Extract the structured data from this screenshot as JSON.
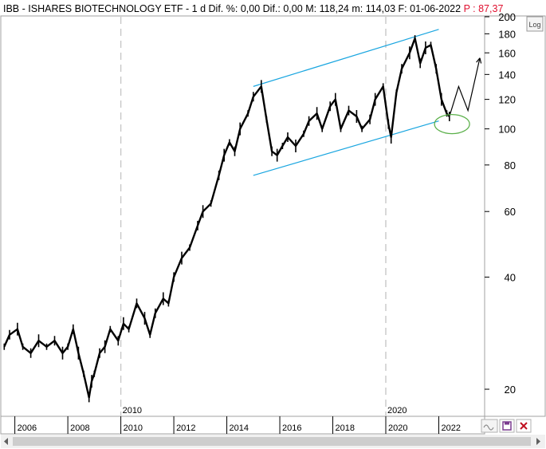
{
  "header": {
    "symbol": "IBB",
    "name": "ISHARES BIOTECHNOLOGY ETF",
    "period": "1 d",
    "diff_pct_label": "Dif. %:",
    "diff_pct": "0,00",
    "diff_label": "Dif.:",
    "diff": "0,00",
    "max_label": "M:",
    "max": "118,24",
    "min_label": "m:",
    "min": "114,03",
    "date_label": "F:",
    "date": "01-06-2022",
    "price_label": "P :",
    "price": "87,37"
  },
  "toolbar": {
    "log_label": "Log"
  },
  "colors": {
    "price": "#000000",
    "channel": "#1aa6e0",
    "ellipse": "#5bb04a",
    "grid": "#c8c8c8",
    "price_text": "#e0102f"
  },
  "icons": [
    "wave-icon",
    "save-icon",
    "close-icon",
    "scroll-left-icon",
    "scroll-right-icon"
  ],
  "chart_data": {
    "type": "line",
    "y_scale": "log",
    "ylim": [
      17,
      200
    ],
    "y_ticks": [
      20,
      40,
      60,
      80,
      100,
      120,
      140,
      160,
      180,
      200
    ],
    "x_ticks": [
      "2006",
      "2008",
      "2010",
      "2012",
      "2014",
      "2016",
      "2018",
      "2020",
      "2022"
    ],
    "x_ticks_years": [
      2006,
      2008,
      2010,
      2012,
      2014,
      2016,
      2018,
      2020,
      2022
    ],
    "x_range": [
      2005.5,
      2023.7
    ],
    "vertical_markers": [
      {
        "x": 2010,
        "label": "2010"
      },
      {
        "x": 2020,
        "label": "2020"
      }
    ],
    "series": [
      {
        "x": [
          2005.6,
          2005.8,
          2006.1,
          2006.3,
          2006.6,
          2006.9,
          2007.2,
          2007.5,
          2007.8,
          2008.0,
          2008.2,
          2008.4,
          2008.6,
          2008.8,
          2008.9,
          2009.0,
          2009.2,
          2009.4,
          2009.6,
          2009.9,
          2010.1,
          2010.3,
          2010.6,
          2010.9,
          2011.1,
          2011.3,
          2011.6,
          2011.8,
          2012.0,
          2012.3,
          2012.6,
          2012.9,
          2013.1,
          2013.4,
          2013.7,
          2013.9,
          2014.1,
          2014.3,
          2014.5,
          2014.8,
          2015.0,
          2015.3,
          2015.5,
          2015.7,
          2015.9,
          2016.1,
          2016.3,
          2016.6,
          2016.9,
          2017.1,
          2017.4,
          2017.6,
          2017.9,
          2018.1,
          2018.3,
          2018.6,
          2018.9,
          2019.1,
          2019.4,
          2019.6,
          2019.9,
          2020.1,
          2020.2,
          2020.4,
          2020.6,
          2020.9,
          2021.1,
          2021.3,
          2021.5,
          2021.7,
          2021.9,
          2022.1,
          2022.3,
          2022.4
        ],
        "values": [
          26,
          28,
          29,
          26,
          25,
          27,
          26,
          27,
          25,
          26,
          29,
          25,
          22,
          19,
          21,
          22,
          25,
          26,
          29,
          27,
          30,
          29,
          34,
          31,
          28,
          32,
          35,
          34,
          40,
          45,
          48,
          55,
          60,
          63,
          75,
          85,
          92,
          87,
          100,
          110,
          122,
          130,
          106,
          87,
          85,
          90,
          95,
          90,
          97,
          105,
          110,
          100,
          115,
          120,
          100,
          112,
          108,
          100,
          106,
          120,
          130,
          103,
          95,
          125,
          145,
          160,
          175,
          150,
          165,
          168,
          145,
          120,
          110,
          108
        ],
        "values_low_spikes": [],
        "channel_upper": {
          "x": [
            2015.0,
            2022.0
          ],
          "y": [
            130,
            185
          ]
        },
        "channel_lower": {
          "x": [
            2015.0,
            2022.0
          ],
          "y": [
            75,
            105
          ]
        },
        "projection": {
          "x": [
            2022.4,
            2022.75,
            2023.1,
            2023.55
          ],
          "y": [
            108,
            130,
            112,
            155
          ]
        },
        "highlight_ellipse": {
          "x": 2022.5,
          "y": 103
        }
      }
    ],
    "legend": "none",
    "grid": true
  }
}
